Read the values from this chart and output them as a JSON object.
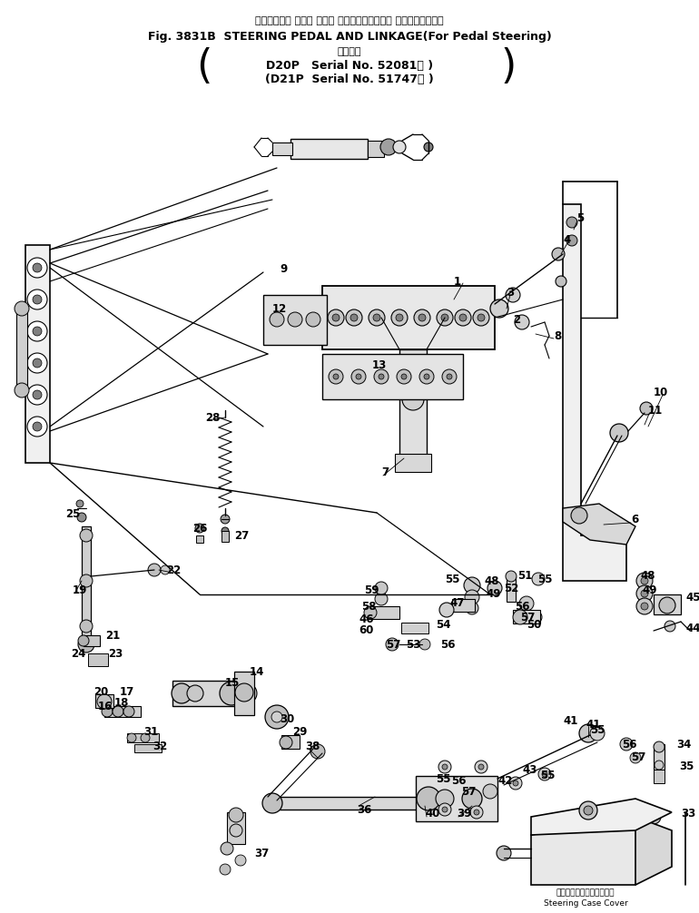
{
  "bg_color": "#ffffff",
  "text_color": "#000000",
  "fig_width": 7.7,
  "fig_height": 10.06,
  "dpi": 100,
  "title_jp": "ステアリング ペダル および リンケージ（ペダル ステアリング用）",
  "title_en_left": "Fig. 3831B  STEERING PEDAL AND LINKAGE",
  "title_en_right": "(For Pedal Steering)",
  "title_sub_jp": "適用号機",
  "title_d20p": "D20P   Serial No. 52081～ )",
  "title_d21p": "(D21P  Serial No. 51747～ )",
  "steering_cover_jp": "ステアリングケースカバー",
  "steering_cover_en": "Steering Case Cover"
}
